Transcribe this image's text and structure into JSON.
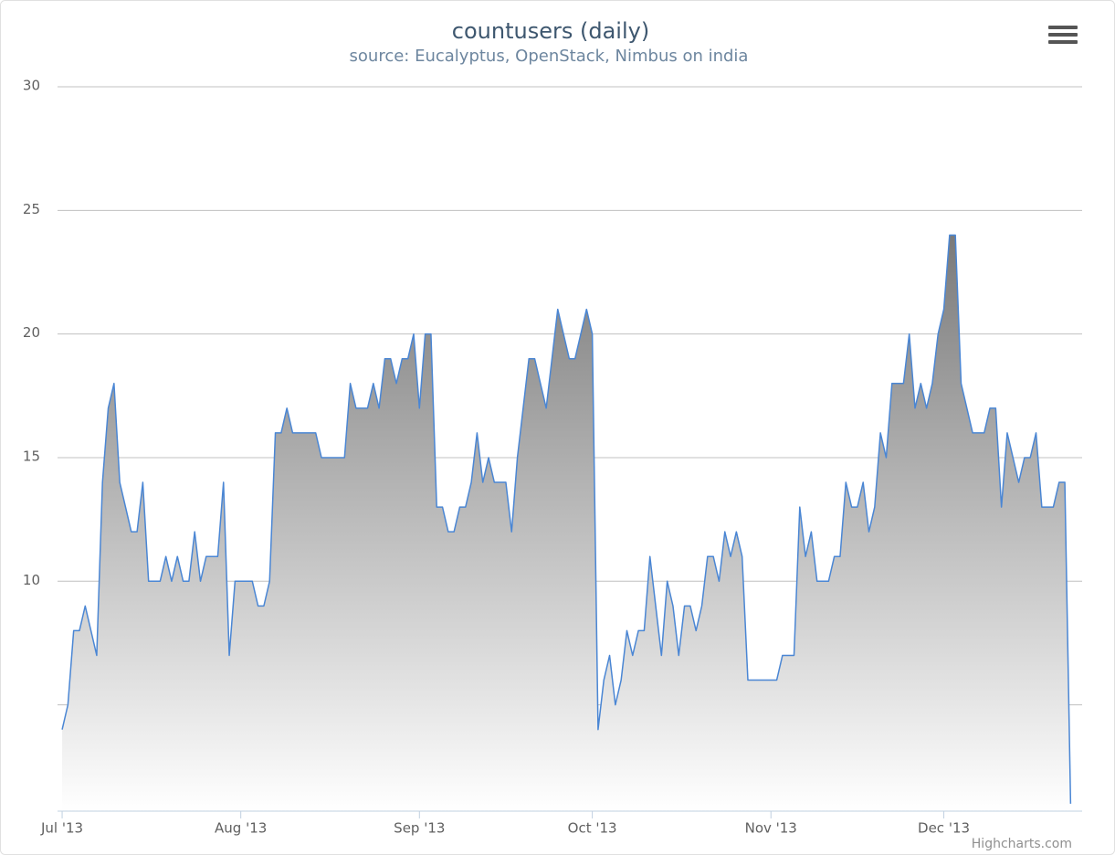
{
  "chart_data": {
    "type": "area",
    "title": "countusers (daily)",
    "subtitle": "source: Eucalyptus, OpenStack, Nimbus on india",
    "credits": "Highcharts.com",
    "x": [
      0,
      1,
      2,
      3,
      4,
      5,
      6,
      7,
      8,
      9,
      10,
      11,
      12,
      13,
      14,
      15,
      16,
      17,
      18,
      19,
      20,
      21,
      22,
      23,
      24,
      25,
      26,
      27,
      28,
      29,
      30,
      31,
      32,
      33,
      34,
      35,
      36,
      37,
      38,
      39,
      40,
      41,
      42,
      43,
      44,
      45,
      46,
      47,
      48,
      49,
      50,
      51,
      52,
      53,
      54,
      55,
      56,
      57,
      58,
      59,
      60,
      61,
      62,
      63,
      64,
      65,
      66,
      67,
      68,
      69,
      70,
      71,
      72,
      73,
      74,
      75,
      76,
      77,
      78,
      79,
      80,
      81,
      82,
      83,
      84,
      85,
      86,
      87,
      88,
      89,
      90,
      91,
      92,
      93,
      94,
      95,
      96,
      97,
      98,
      99,
      100,
      101,
      102,
      103,
      104,
      105,
      106,
      107,
      108,
      109,
      110,
      111,
      112,
      113,
      114,
      115,
      116,
      117,
      118,
      119,
      120,
      121,
      122,
      123,
      124,
      125,
      126,
      127,
      128,
      129,
      130,
      131,
      132,
      133,
      134,
      135,
      136,
      137,
      138,
      139,
      140,
      141,
      142,
      143,
      144,
      145,
      146,
      147,
      148,
      149,
      150,
      151,
      152,
      153,
      154,
      155,
      156,
      157,
      158,
      159,
      160,
      161,
      162,
      163,
      164,
      165,
      166,
      167,
      168,
      169,
      170,
      171,
      172,
      173,
      174,
      175
    ],
    "series": [
      {
        "color": "#4a86d4",
        "values": [
          4,
          5,
          8,
          8,
          9,
          8,
          7,
          14,
          17,
          18,
          14,
          13,
          12,
          12,
          14,
          10,
          10,
          10,
          11,
          10,
          11,
          10,
          10,
          12,
          10,
          11,
          11,
          11,
          14,
          7,
          10,
          10,
          10,
          10,
          9,
          9,
          10,
          16,
          16,
          17,
          16,
          16,
          16,
          16,
          16,
          15,
          15,
          15,
          15,
          15,
          18,
          17,
          17,
          17,
          18,
          17,
          19,
          19,
          18,
          19,
          19,
          20,
          17,
          20,
          20,
          13,
          13,
          12,
          12,
          13,
          13,
          14,
          16,
          14,
          15,
          14,
          14,
          14,
          12,
          15,
          17,
          19,
          19,
          18,
          17,
          19,
          21,
          20,
          19,
          19,
          20,
          21,
          20,
          4,
          6,
          7,
          5,
          6,
          8,
          7,
          8,
          8,
          11,
          9,
          7,
          10,
          9,
          7,
          9,
          9,
          8,
          9,
          11,
          11,
          10,
          12,
          11,
          12,
          11,
          6,
          6,
          6,
          6,
          6,
          6,
          7,
          7,
          7,
          13,
          11,
          12,
          10,
          10,
          10,
          11,
          11,
          14,
          13,
          13,
          14,
          12,
          13,
          16,
          15,
          18,
          18,
          18,
          20,
          17,
          18,
          17,
          18,
          20,
          21,
          24,
          24,
          18,
          17,
          16,
          16,
          16,
          17,
          17,
          13,
          16,
          15,
          14,
          15,
          15,
          16,
          13,
          13,
          13,
          14,
          14,
          1
        ]
      }
    ],
    "xlim": [
      -0.8,
      177
    ],
    "xticks": [
      {
        "value": 0,
        "label": "Jul '13"
      },
      {
        "value": 31,
        "label": "Aug '13"
      },
      {
        "value": 62,
        "label": "Sep '13"
      },
      {
        "value": 92,
        "label": "Oct '13"
      },
      {
        "value": 123,
        "label": "Nov '13"
      },
      {
        "value": 153,
        "label": "Dec '13"
      }
    ],
    "ylim": [
      0.7,
      30
    ],
    "yticks": [
      {
        "value": 5,
        "label": null
      },
      10,
      15,
      20,
      25,
      30
    ],
    "grid": true
  }
}
